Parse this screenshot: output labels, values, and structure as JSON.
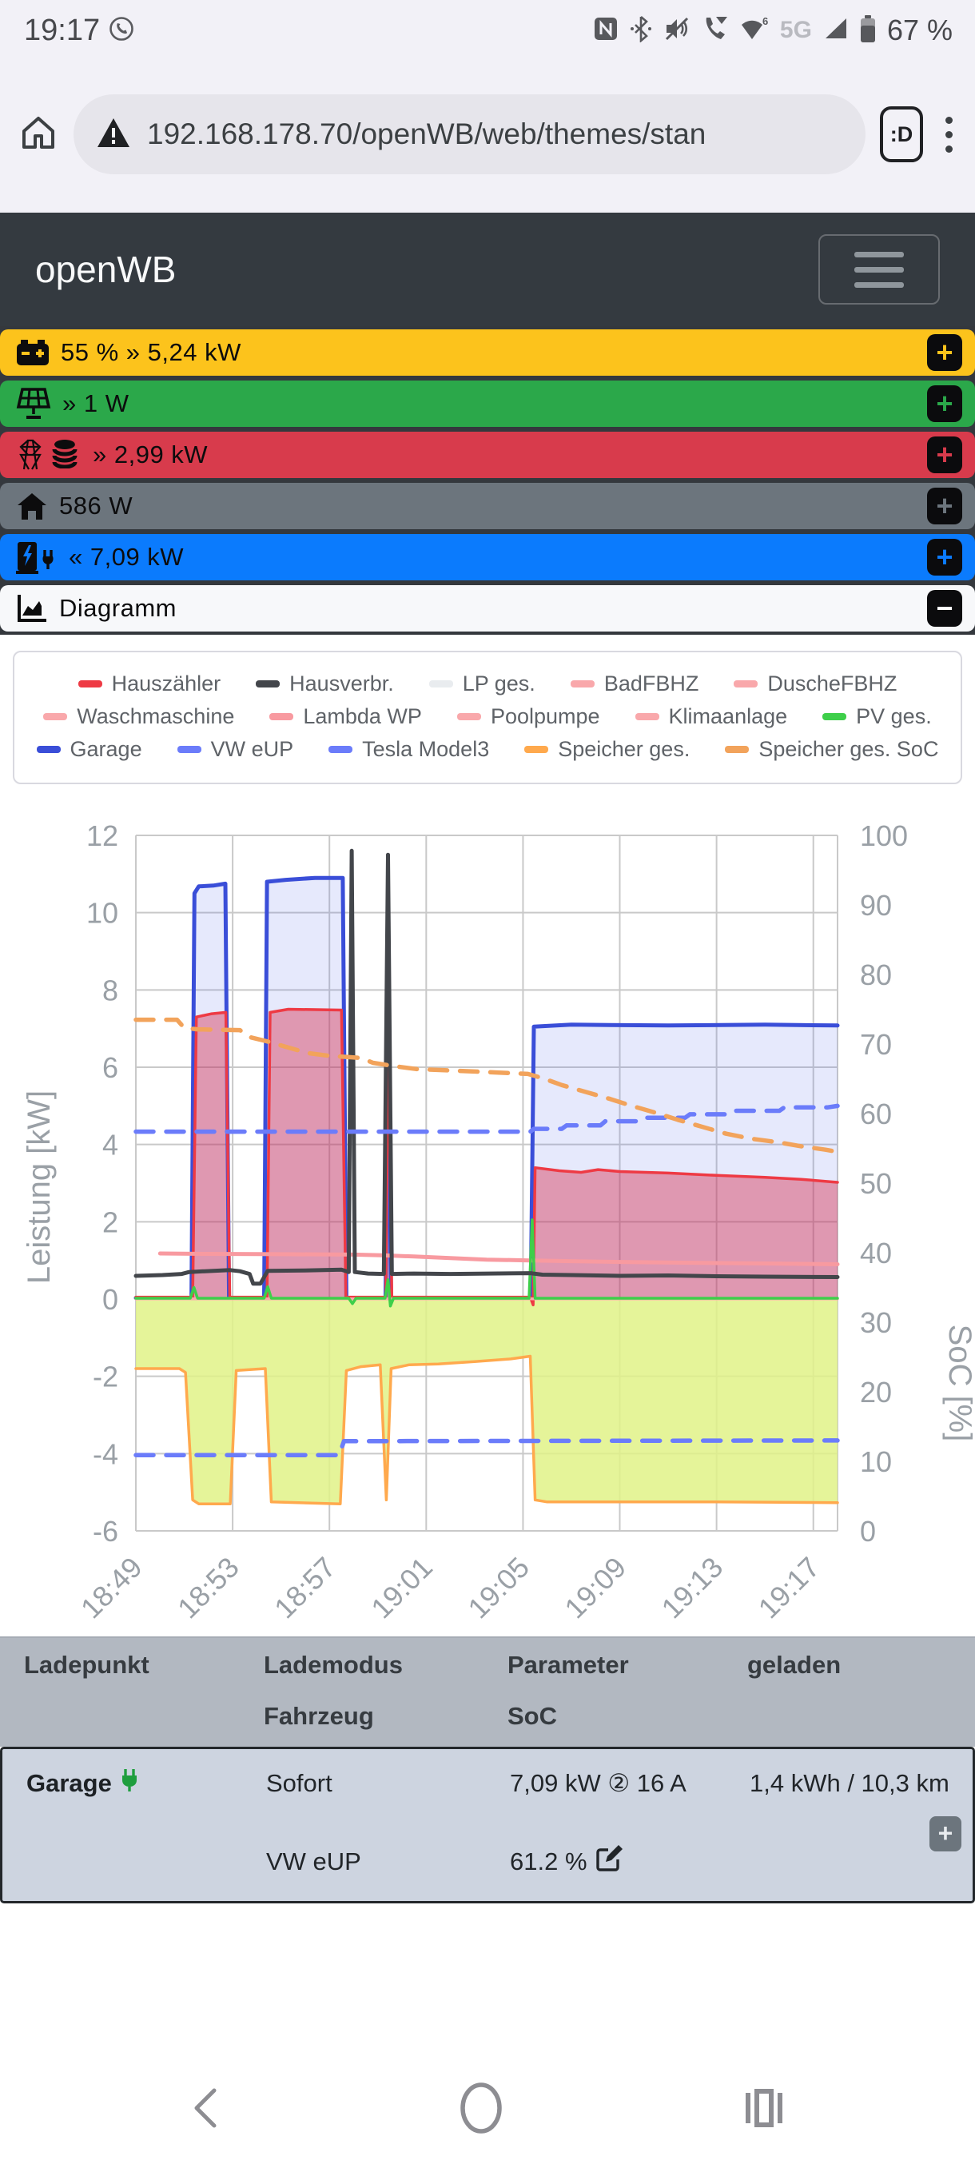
{
  "status_bar": {
    "time": "19:17",
    "network_badge": "5G",
    "battery_text": "67 %",
    "icons": [
      "whatsapp-icon",
      "nfc-icon",
      "bluetooth-icon",
      "mute-icon",
      "wifi-calling-icon",
      "wifi6-icon",
      "signal-icon",
      "battery-icon"
    ]
  },
  "browser": {
    "url": "192.168.178.70/openWB/web/themes/stan",
    "tab_badge": ":D"
  },
  "app_header": {
    "title": "openWB"
  },
  "status_tiles": [
    {
      "id": "battery-soc",
      "text": "55 % » 5,24 kW",
      "color": "#fcc31c",
      "icon": "car-battery-icon"
    },
    {
      "id": "pv",
      "text": "» 1 W",
      "color": "#2ba84a",
      "icon": "solar-panel-icon"
    },
    {
      "id": "grid",
      "text": "» 2,99 kW",
      "color": "#d83b4c",
      "icon": "transmission-tower-icon coins-icon"
    },
    {
      "id": "house",
      "text": "586 W",
      "color": "#6c757d",
      "icon": "house-icon"
    },
    {
      "id": "chargepoint",
      "text": "« 7,09 kW",
      "color": "#0b7bfd",
      "icon": "charging-station-icon"
    },
    {
      "id": "diagram",
      "text": "Diagramm",
      "color": "#f7f8fa",
      "icon": "chart-area-icon"
    }
  ],
  "chart_data": {
    "type": "line",
    "title": "",
    "ylabel_left": "Leistung [kW]",
    "ylabel_right": "SoC [%]",
    "ylim_left": [
      -6,
      12
    ],
    "ylim_right": [
      0,
      100
    ],
    "x_ticks": [
      "18:49",
      "18:53",
      "18:57",
      "19:01",
      "19:05",
      "19:09",
      "19:13",
      "19:17"
    ],
    "x_tick_step_minutes": 4,
    "x_max": 29,
    "grid": true,
    "legend_rows": [
      [
        0,
        1,
        2,
        3,
        4
      ],
      [
        5,
        6,
        7,
        8,
        9
      ],
      [
        10,
        11,
        12,
        13,
        14
      ]
    ],
    "draw": {
      "fills": [
        13,
        10,
        0
      ],
      "strokes": [
        13,
        2,
        10,
        0,
        5,
        7,
        8,
        3,
        4,
        6,
        9,
        1,
        12,
        11,
        14
      ]
    },
    "series": [
      {
        "name": "Hauszähler",
        "color": "#ee3a44",
        "width": 3.5,
        "axis": "left",
        "fill": "rgba(214,40,75,0.42)",
        "points": [
          [
            0,
            0.05
          ],
          [
            2.35,
            0.05
          ],
          [
            2.5,
            7.3
          ],
          [
            3.1,
            7.38
          ],
          [
            3.72,
            7.42
          ],
          [
            3.88,
            0.05
          ],
          [
            5.42,
            0.05
          ],
          [
            5.55,
            7.42
          ],
          [
            6.3,
            7.5
          ],
          [
            8.5,
            7.48
          ],
          [
            8.68,
            0.05
          ],
          [
            10.33,
            0.05
          ],
          [
            10.44,
            7.3
          ],
          [
            10.58,
            0.05
          ],
          [
            16.3,
            0.05
          ],
          [
            16.42,
            -0.15
          ],
          [
            16.5,
            3.4
          ],
          [
            17.5,
            3.32
          ],
          [
            18.4,
            3.28
          ],
          [
            19.1,
            3.35
          ],
          [
            20,
            3.3
          ],
          [
            22,
            3.26
          ],
          [
            24,
            3.2
          ],
          [
            26,
            3.15
          ],
          [
            27.5,
            3.1
          ],
          [
            29,
            3.02
          ]
        ]
      },
      {
        "name": "Hausverbr.",
        "color": "#43464b",
        "width": 5,
        "axis": "left",
        "points": [
          [
            0,
            0.6
          ],
          [
            1.1,
            0.62
          ],
          [
            1.9,
            0.65
          ],
          [
            2.2,
            0.7
          ],
          [
            3.2,
            0.73
          ],
          [
            3.9,
            0.75
          ],
          [
            4.3,
            0.72
          ],
          [
            4.7,
            0.65
          ],
          [
            4.85,
            0.4
          ],
          [
            5.15,
            0.4
          ],
          [
            5.45,
            0.73
          ],
          [
            7,
            0.74
          ],
          [
            8.5,
            0.76
          ],
          [
            8.8,
            0.7
          ],
          [
            8.92,
            11.6
          ],
          [
            9.05,
            0.7
          ],
          [
            9.6,
            0.66
          ],
          [
            10.25,
            0.65
          ],
          [
            10.42,
            11.5
          ],
          [
            10.58,
            0.65
          ],
          [
            11.5,
            0.66
          ],
          [
            13,
            0.65
          ],
          [
            16.3,
            0.67
          ],
          [
            16.8,
            0.63
          ],
          [
            18,
            0.62
          ],
          [
            20,
            0.6
          ],
          [
            22,
            0.61
          ],
          [
            24,
            0.59
          ],
          [
            26,
            0.58
          ],
          [
            29,
            0.57
          ]
        ]
      },
      {
        "name": "LP ges.",
        "color": "#e9ecef",
        "width": 4,
        "axis": "left",
        "points": [
          [
            0,
            0.03
          ],
          [
            2.3,
            0.03
          ],
          [
            2.42,
            10.5
          ],
          [
            2.6,
            10.68
          ],
          [
            3.2,
            10.7
          ],
          [
            3.7,
            10.75
          ],
          [
            3.85,
            0.03
          ],
          [
            5.3,
            0.03
          ],
          [
            5.42,
            10.8
          ],
          [
            6.2,
            10.85
          ],
          [
            7.4,
            10.9
          ],
          [
            8.55,
            10.9
          ],
          [
            8.7,
            0.03
          ],
          [
            10.32,
            0.03
          ],
          [
            10.42,
            6.5
          ],
          [
            10.55,
            0.03
          ],
          [
            16.32,
            0.03
          ],
          [
            16.45,
            7.05
          ],
          [
            18,
            7.1
          ],
          [
            22,
            7.08
          ],
          [
            26,
            7.1
          ],
          [
            29,
            7.08
          ]
        ]
      },
      {
        "name": "BadFBHZ",
        "color": "#f9a8ab",
        "width": 3,
        "axis": "left",
        "points": [
          [
            0,
            0.01
          ],
          [
            29,
            0.01
          ]
        ]
      },
      {
        "name": "DuscheFBHZ",
        "color": "#f9a8ab",
        "width": 3,
        "axis": "left",
        "points": [
          [
            0,
            0.01
          ],
          [
            29,
            0.01
          ]
        ]
      },
      {
        "name": "Waschmaschine",
        "color": "#f9a8ab",
        "width": 3,
        "axis": "left",
        "points": [
          [
            0,
            0.0
          ],
          [
            29,
            0.0
          ]
        ]
      },
      {
        "name": "Lambda WP",
        "color": "#f republicans89aa0",
        "width": 5,
        "axis": "left",
        "points": [
          [
            1.0,
            1.18
          ],
          [
            3,
            1.17
          ],
          [
            6,
            1.16
          ],
          [
            9,
            1.15
          ],
          [
            10.3,
            1.13
          ],
          [
            11.5,
            1.1
          ],
          [
            13,
            1.06
          ],
          [
            14.5,
            1.02
          ],
          [
            16.3,
            1.0
          ],
          [
            18,
            0.98
          ],
          [
            20,
            0.96
          ],
          [
            23,
            0.94
          ],
          [
            26,
            0.92
          ],
          [
            29,
            0.9
          ]
        ]
      },
      {
        "name": "Poolpumpe",
        "color": "#f9a8ab",
        "width": 3,
        "axis": "left",
        "points": [
          [
            0,
            0.0
          ],
          [
            29,
            0.0
          ]
        ]
      },
      {
        "name": "Klimaanlage",
        "color": "#f9a8ab",
        "width": 3,
        "axis": "left",
        "points": [
          [
            0,
            0.0
          ],
          [
            29,
            0.0
          ]
        ]
      },
      {
        "name": "PV ges.",
        "color": "#3ecf4a",
        "width": 3.5,
        "axis": "left",
        "points": [
          [
            0,
            0.02
          ],
          [
            2.25,
            0.02
          ],
          [
            2.4,
            0.3
          ],
          [
            2.55,
            0.02
          ],
          [
            5.3,
            0.02
          ],
          [
            5.45,
            0.32
          ],
          [
            5.6,
            0.02
          ],
          [
            8.8,
            0.02
          ],
          [
            8.95,
            -0.12
          ],
          [
            9.1,
            0.02
          ],
          [
            10.3,
            0.02
          ],
          [
            10.42,
            0.5
          ],
          [
            10.52,
            -0.18
          ],
          [
            10.65,
            0.02
          ],
          [
            16.25,
            0.02
          ],
          [
            16.38,
            2.05
          ],
          [
            16.5,
            0.02
          ],
          [
            20,
            0.02
          ],
          [
            29,
            0.02
          ]
        ]
      },
      {
        "name": "Garage",
        "color": "#3a4ed8",
        "width": 5,
        "axis": "left",
        "fill": "rgba(90,106,237,0.15)",
        "points": [
          [
            0,
            0.03
          ],
          [
            2.3,
            0.03
          ],
          [
            2.42,
            10.5
          ],
          [
            2.6,
            10.68
          ],
          [
            3.2,
            10.7
          ],
          [
            3.7,
            10.75
          ],
          [
            3.85,
            0.03
          ],
          [
            5.3,
            0.03
          ],
          [
            5.42,
            10.8
          ],
          [
            6.2,
            10.85
          ],
          [
            7.4,
            10.9
          ],
          [
            8.55,
            10.9
          ],
          [
            8.7,
            0.03
          ],
          [
            10.32,
            0.03
          ],
          [
            10.42,
            6.5
          ],
          [
            10.55,
            0.03
          ],
          [
            16.32,
            0.03
          ],
          [
            16.45,
            7.05
          ],
          [
            18,
            7.1
          ],
          [
            22,
            7.08
          ],
          [
            26,
            7.1
          ],
          [
            29,
            7.08
          ]
        ]
      },
      {
        "name": "VW eUP",
        "color": "#6b7cfa",
        "width": 5.5,
        "dash": "22,16",
        "axis": "right",
        "points": [
          [
            0,
            57.4
          ],
          [
            16.3,
            57.4
          ],
          [
            16.45,
            57.8
          ],
          [
            17.6,
            57.8
          ],
          [
            17.8,
            58.3
          ],
          [
            19.2,
            58.3
          ],
          [
            19.4,
            58.9
          ],
          [
            20.9,
            58.9
          ],
          [
            21.1,
            59.4
          ],
          [
            22.7,
            59.4
          ],
          [
            22.9,
            59.9
          ],
          [
            24.6,
            59.9
          ],
          [
            24.8,
            60.4
          ],
          [
            26.6,
            60.4
          ],
          [
            26.8,
            60.9
          ],
          [
            28.6,
            60.9
          ],
          [
            29,
            61.1
          ]
        ]
      },
      {
        "name": "Tesla Model3",
        "color": "#6b7cfa",
        "width": 5.5,
        "dash": "22,16",
        "axis": "right",
        "points": [
          [
            0,
            10.9
          ],
          [
            8.4,
            10.9
          ],
          [
            8.6,
            12.9
          ],
          [
            29,
            13.0
          ]
        ]
      },
      {
        "name": "Speicher ges.",
        "color": "#ffa94d",
        "width": 3.5,
        "axis": "left",
        "fill": "rgba(225,242,135,0.85)",
        "points": [
          [
            0,
            -1.8
          ],
          [
            1.8,
            -1.8
          ],
          [
            2.05,
            -1.9
          ],
          [
            2.35,
            -5.2
          ],
          [
            2.6,
            -5.3
          ],
          [
            3.9,
            -5.3
          ],
          [
            4.15,
            -1.85
          ],
          [
            5.35,
            -1.8
          ],
          [
            5.6,
            -5.25
          ],
          [
            8.45,
            -5.3
          ],
          [
            8.7,
            -1.85
          ],
          [
            9.3,
            -1.75
          ],
          [
            10.1,
            -1.7
          ],
          [
            10.35,
            -5.2
          ],
          [
            10.55,
            -1.8
          ],
          [
            11.3,
            -1.7
          ],
          [
            12.5,
            -1.68
          ],
          [
            14,
            -1.62
          ],
          [
            15.5,
            -1.55
          ],
          [
            16.3,
            -1.48
          ],
          [
            16.5,
            -5.2
          ],
          [
            17,
            -5.25
          ],
          [
            20,
            -5.25
          ],
          [
            24,
            -5.25
          ],
          [
            29,
            -5.27
          ]
        ]
      },
      {
        "name": "Speicher ges. SoC",
        "color": "#f2a35b",
        "width": 5.5,
        "dash": "22,16",
        "axis": "right",
        "points": [
          [
            0,
            73.5
          ],
          [
            1.7,
            73.5
          ],
          [
            2.0,
            72.3
          ],
          [
            2.6,
            72.1
          ],
          [
            4.3,
            72.0
          ],
          [
            4.7,
            71.0
          ],
          [
            5.4,
            70.4
          ],
          [
            6.2,
            69.6
          ],
          [
            7.1,
            68.7
          ],
          [
            8.0,
            68.3
          ],
          [
            9.3,
            68.0
          ],
          [
            9.8,
            67.3
          ],
          [
            10.7,
            66.8
          ],
          [
            11.6,
            66.4
          ],
          [
            13.0,
            66.2
          ],
          [
            15.0,
            65.9
          ],
          [
            16.2,
            65.7
          ],
          [
            16.8,
            65.1
          ],
          [
            17.6,
            64.1
          ],
          [
            18.6,
            63.1
          ],
          [
            19.6,
            62.1
          ],
          [
            20.5,
            61.1
          ],
          [
            21.5,
            60.1
          ],
          [
            22.4,
            59.1
          ],
          [
            23.4,
            58.1
          ],
          [
            24.4,
            57.1
          ],
          [
            25.4,
            56.4
          ],
          [
            26.5,
            55.9
          ],
          [
            27.5,
            55.3
          ],
          [
            28.5,
            54.8
          ],
          [
            29,
            54.5
          ]
        ]
      }
    ]
  },
  "table": {
    "headers": {
      "col1_line1": "Ladepunkt",
      "col1_line2": "",
      "col2_line1": "Lademodus",
      "col2_line2": "Fahrzeug",
      "col3_line1": "Parameter",
      "col3_line2": "SoC",
      "col4_line1": "geladen",
      "col4_line2": ""
    },
    "row": {
      "chargepoint": "Garage",
      "mode": "Sofort",
      "vehicle": "VW eUP",
      "parameter": "7,09 kW ② 16 A",
      "soc": "61.2 %",
      "charged": "1,4 kWh / 10,3 km"
    }
  }
}
